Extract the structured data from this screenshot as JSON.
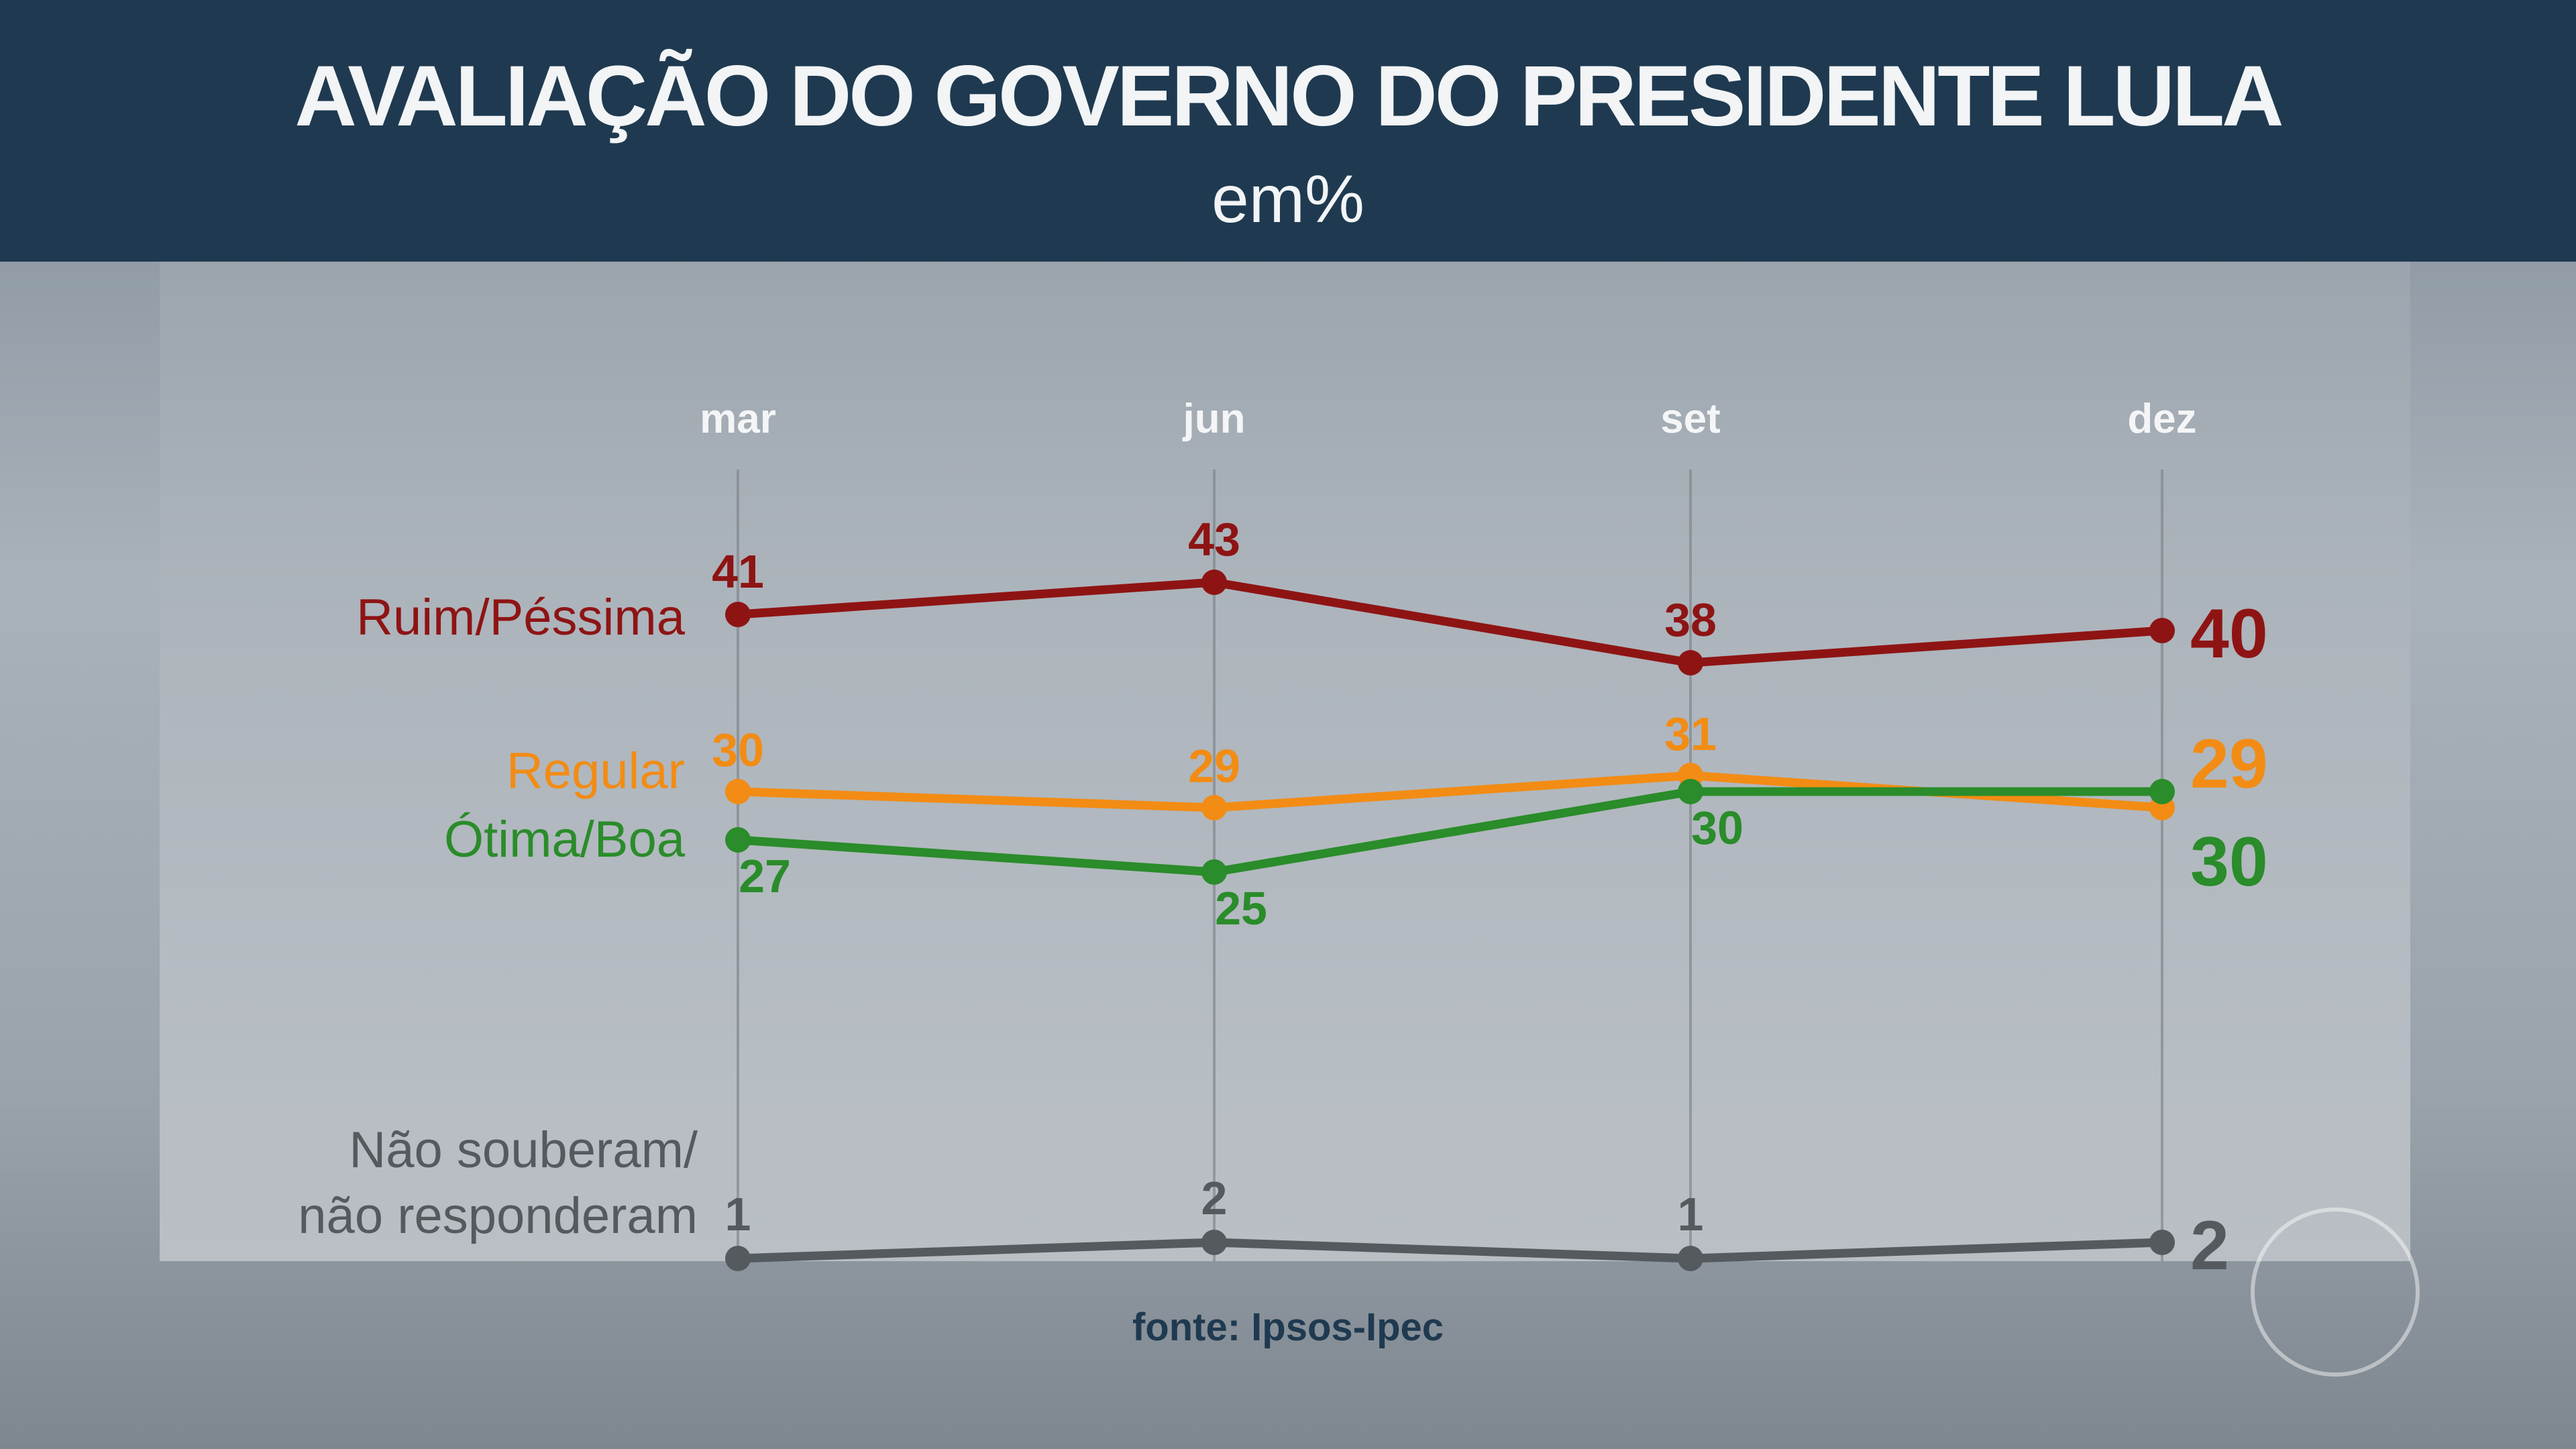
{
  "header": {
    "title": "AVALIAÇÃO DO GOVERNO DO PRESIDENTE LULA",
    "subtitle": "em%"
  },
  "source": "fonte: Ipsos-Ipec",
  "chart_data": {
    "type": "line",
    "categories": [
      "mar",
      "jun",
      "set",
      "dez"
    ],
    "ylim": [
      0,
      45
    ],
    "grid": "vertical",
    "series": [
      {
        "name": "Ruim/Péssima",
        "values": [
          41,
          43,
          38,
          40
        ],
        "color": "#8e1414"
      },
      {
        "name": "Regular",
        "values": [
          30,
          29,
          31,
          29
        ],
        "color": "#f28c14"
      },
      {
        "name": "Ótima/Boa",
        "values": [
          27,
          25,
          30,
          30
        ],
        "color": "#2a8c2a"
      },
      {
        "name": "Não souberam/ não responderam",
        "values": [
          1,
          2,
          1,
          2
        ],
        "color": "#555a5e"
      }
    ]
  }
}
